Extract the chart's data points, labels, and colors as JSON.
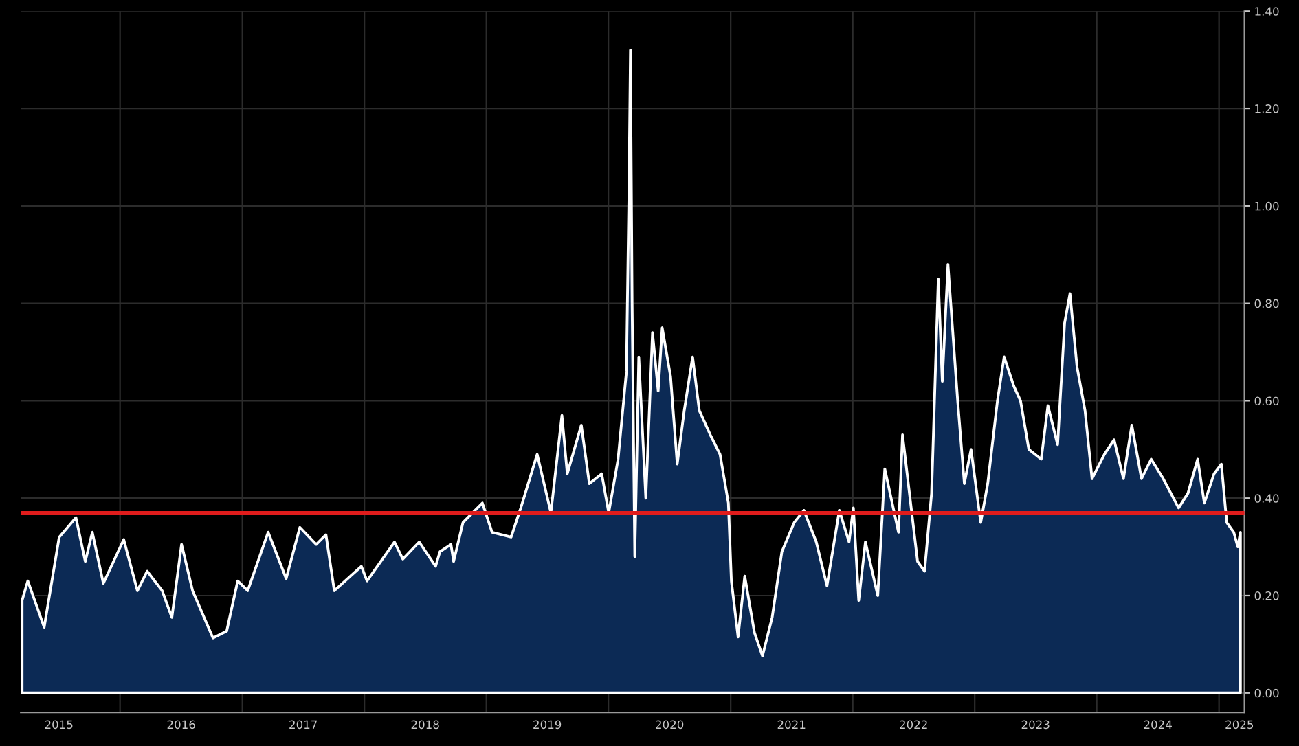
{
  "chart_data": {
    "type": "area",
    "x": [
      "2015-03-14",
      "2015-03-31",
      "2015-05-19",
      "2015-07-03",
      "2015-08-22",
      "2015-09-19",
      "2015-10-10",
      "2015-11-12",
      "2016-01-12",
      "2016-02-22",
      "2016-03-22",
      "2016-05-06",
      "2016-06-04",
      "2016-07-03",
      "2016-08-05",
      "2016-10-05",
      "2016-11-15",
      "2016-12-18",
      "2017-01-17",
      "2017-03-19",
      "2017-05-12",
      "2017-06-22",
      "2017-08-10",
      "2017-09-08",
      "2017-10-03",
      "2017-12-23",
      "2018-01-09",
      "2018-04-01",
      "2018-04-26",
      "2018-06-14",
      "2018-08-02",
      "2018-08-15",
      "2018-09-17",
      "2018-09-25",
      "2018-10-23",
      "2018-12-20",
      "2019-01-18",
      "2019-03-16",
      "2019-04-14",
      "2019-06-02",
      "2019-07-13",
      "2019-08-15",
      "2019-08-31",
      "2019-10-12",
      "2019-11-05",
      "2019-12-12",
      "2020-01-02",
      "2020-01-30",
      "2020-02-24",
      "2020-03-03",
      "2020-03-07",
      "2020-03-12",
      "2020-03-20",
      "2020-04-01",
      "2020-04-22",
      "2020-05-12",
      "2020-05-29",
      "2020-06-10",
      "2020-07-05",
      "2020-07-25",
      "2020-08-15",
      "2020-09-09",
      "2020-09-29",
      "2020-11-01",
      "2020-11-30",
      "2020-12-25",
      "2021-01-03",
      "2021-01-23",
      "2021-02-12",
      "2021-03-13",
      "2021-04-06",
      "2021-05-05",
      "2021-06-03",
      "2021-07-10",
      "2021-08-08",
      "2021-09-14",
      "2021-10-16",
      "2021-11-22",
      "2021-12-21",
      "2022-01-03",
      "2022-01-19",
      "2022-02-08",
      "2022-03-17",
      "2022-04-07",
      "2022-05-18",
      "2022-05-30",
      "2022-07-14",
      "2022-08-04",
      "2022-08-25",
      "2022-09-14",
      "2022-09-26",
      "2022-10-13",
      "2022-11-11",
      "2022-12-01",
      "2022-12-21",
      "2023-01-19",
      "2023-02-09",
      "2023-03-10",
      "2023-03-30",
      "2023-04-28",
      "2023-05-18",
      "2023-06-12",
      "2023-07-19",
      "2023-08-08",
      "2023-09-06",
      "2023-09-27",
      "2023-10-13",
      "2023-11-03",
      "2023-11-27",
      "2023-12-18",
      "2024-01-24",
      "2024-02-22",
      "2024-03-21",
      "2024-04-15",
      "2024-05-14",
      "2024-06-12",
      "2024-07-18",
      "2024-09-02",
      "2024-09-30",
      "2024-10-29",
      "2024-11-18",
      "2024-12-17",
      "2025-01-08",
      "2025-01-24",
      "2025-02-14",
      "2025-02-26",
      "2025-03-06"
    ],
    "series": [
      {
        "color": "#0c2a55",
        "values": [
          0.19,
          0.23,
          0.135,
          0.32,
          0.36,
          0.27,
          0.33,
          0.225,
          0.315,
          0.21,
          0.25,
          0.21,
          0.155,
          0.305,
          0.21,
          0.113,
          0.127,
          0.23,
          0.21,
          0.33,
          0.235,
          0.34,
          0.305,
          0.325,
          0.21,
          0.26,
          0.23,
          0.31,
          0.275,
          0.31,
          0.26,
          0.29,
          0.305,
          0.27,
          0.35,
          0.39,
          0.33,
          0.32,
          0.38,
          0.49,
          0.37,
          0.57,
          0.45,
          0.55,
          0.43,
          0.45,
          0.37,
          0.48,
          0.66,
          1.05,
          1.32,
          0.8,
          0.28,
          0.69,
          0.4,
          0.74,
          0.62,
          0.75,
          0.65,
          0.47,
          0.58,
          0.69,
          0.58,
          0.53,
          0.49,
          0.39,
          0.23,
          0.115,
          0.24,
          0.124,
          0.076,
          0.155,
          0.29,
          0.35,
          0.375,
          0.31,
          0.22,
          0.375,
          0.31,
          0.38,
          0.19,
          0.31,
          0.2,
          0.46,
          0.33,
          0.53,
          0.27,
          0.25,
          0.41,
          0.85,
          0.64,
          0.88,
          0.6,
          0.43,
          0.5,
          0.35,
          0.43,
          0.6,
          0.69,
          0.63,
          0.6,
          0.5,
          0.48,
          0.59,
          0.51,
          0.76,
          0.82,
          0.67,
          0.58,
          0.44,
          0.49,
          0.52,
          0.44,
          0.55,
          0.44,
          0.48,
          0.44,
          0.38,
          0.41,
          0.48,
          0.39,
          0.45,
          0.47,
          0.35,
          0.33,
          0.3,
          0.33
        ]
      }
    ],
    "xlim": [
      "2015-03-10",
      "2025-03-18"
    ],
    "xticks": [
      {
        "value": "2016-01-01",
        "label": null
      },
      {
        "value": "2017-01-01",
        "label": null
      },
      {
        "value": "2018-01-01",
        "label": null
      },
      {
        "value": "2019-01-01",
        "label": null
      },
      {
        "value": "2020-01-01",
        "label": null
      },
      {
        "value": "2021-01-01",
        "label": null
      },
      {
        "value": "2022-01-01",
        "label": null
      },
      {
        "value": "2023-01-01",
        "label": null
      },
      {
        "value": "2024-01-01",
        "label": null
      },
      {
        "value": "2025-01-01",
        "label": null
      },
      {
        "value": "2015-07-02",
        "label": "2015"
      },
      {
        "value": "2016-07-02",
        "label": "2016"
      },
      {
        "value": "2017-07-02",
        "label": "2017"
      },
      {
        "value": "2018-07-02",
        "label": "2018"
      },
      {
        "value": "2019-07-02",
        "label": "2019"
      },
      {
        "value": "2020-07-02",
        "label": "2020"
      },
      {
        "value": "2021-07-02",
        "label": "2021"
      },
      {
        "value": "2022-07-02",
        "label": "2022"
      },
      {
        "value": "2023-07-02",
        "label": "2023"
      },
      {
        "value": "2024-07-02",
        "label": "2024"
      },
      {
        "value": "2025-03-03",
        "label": "2025"
      }
    ],
    "ylim": [
      -0.04,
      1.4
    ],
    "yticks": [
      {
        "value": 0,
        "label": "0.00"
      },
      {
        "value": 0.2,
        "label": "0.20"
      },
      {
        "value": 0.4,
        "label": "0.40"
      },
      {
        "value": 0.6,
        "label": "0.60"
      },
      {
        "value": 0.8,
        "label": "0.80"
      },
      {
        "value": 1.0,
        "label": "1.00"
      },
      {
        "value": 1.2,
        "label": "1.20"
      },
      {
        "value": 1.4,
        "label": "1.40"
      }
    ],
    "ref_lines": [
      {
        "axis": "y",
        "value": 0.37,
        "color": "#e01c1c"
      }
    ],
    "grid": true,
    "legend": false
  }
}
